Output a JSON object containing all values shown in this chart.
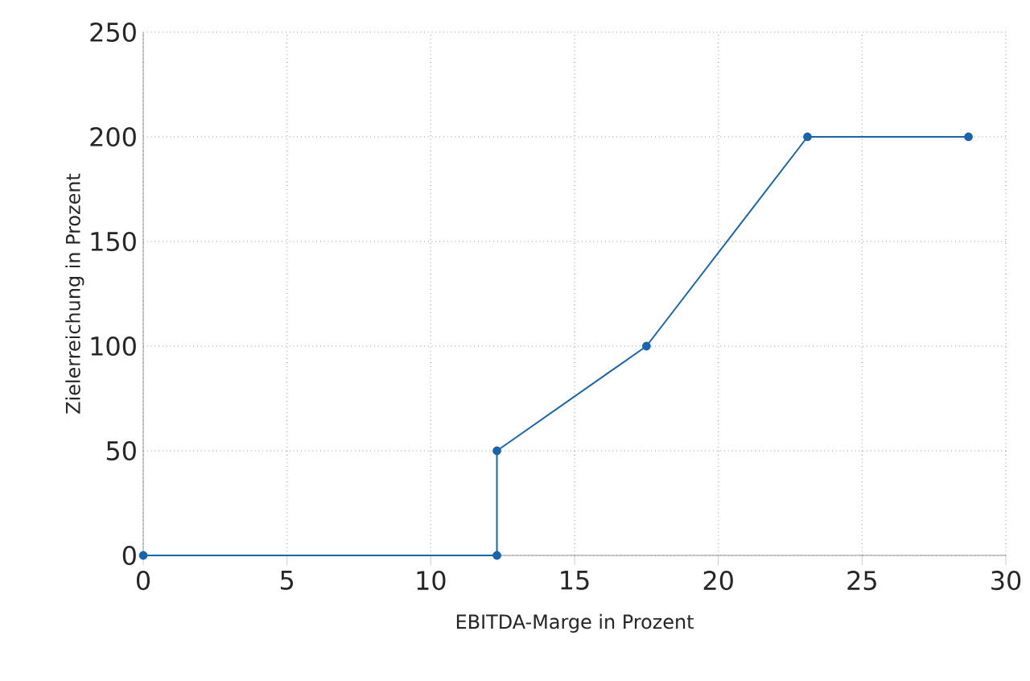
{
  "chart_data": {
    "type": "line",
    "xlabel": "EBITDA-Marge in Prozent",
    "ylabel": "Zielerreichung in Prozent",
    "x": [
      0,
      12.3,
      12.3,
      17.5,
      23.1,
      28.7
    ],
    "series": [
      {
        "color": "#1565b0",
        "values": [
          0,
          0,
          50,
          100,
          200,
          200
        ]
      }
    ],
    "xlim": [
      0,
      30
    ],
    "ylim": [
      0,
      250
    ],
    "xticks": [
      0,
      5,
      10,
      15,
      20,
      25,
      30
    ],
    "yticks": [
      0,
      50,
      100,
      150,
      200,
      250
    ],
    "grid": true,
    "marker": "circle",
    "line_style": "solid"
  }
}
